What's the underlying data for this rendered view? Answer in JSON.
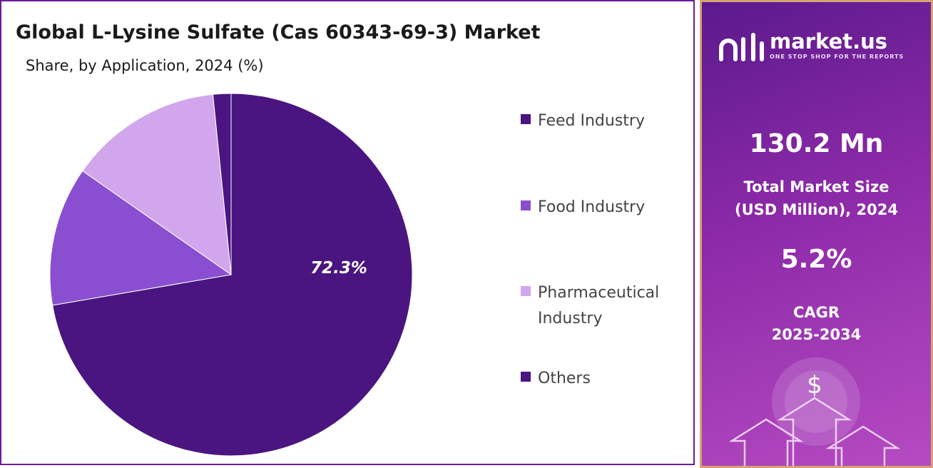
{
  "title": "Global L-Lysine Sulfate (Cas 60343-69-3) Market",
  "subtitle": "Share, by Application, 2024 (%)",
  "chart_data": {
    "type": "pie",
    "title": "Global L-Lysine Sulfate (Cas 60343-69-3) Market",
    "subtitle": "Share, by Application, 2024 (%)",
    "slices": [
      {
        "label": "Feed Industry",
        "value": 72.3,
        "color": "#4a1580"
      },
      {
        "label": "Food Industry",
        "value": 12.4,
        "color": "#8a4fd0"
      },
      {
        "label": "Pharmaceutical Industry",
        "value": 13.7,
        "color": "#d2a6ec"
      },
      {
        "label": "Others",
        "value": 1.6,
        "color": "#4a1580"
      }
    ],
    "data_labels": [
      "72.3%"
    ],
    "legend_position": "right"
  },
  "legend": [
    {
      "label": "Feed Industry",
      "color": "#4a1580"
    },
    {
      "label": "Food Industry",
      "color": "#8a4fd0"
    },
    {
      "label": "Pharmaceutical Industry",
      "color": "#d2a6ec"
    },
    {
      "label": "Others",
      "color": "#4a1580"
    }
  ],
  "sidebar": {
    "brand": "market.us",
    "tagline": "ONE STOP SHOP FOR THE REPORTS",
    "market_size_value": "130.2 Mn",
    "market_size_label_1": "Total Market Size",
    "market_size_label_2": "(USD Million), 2024",
    "cagr_value": "5.2%",
    "cagr_label_1": "CAGR",
    "cagr_label_2": "2025-2034",
    "dollar_symbol": "$"
  }
}
